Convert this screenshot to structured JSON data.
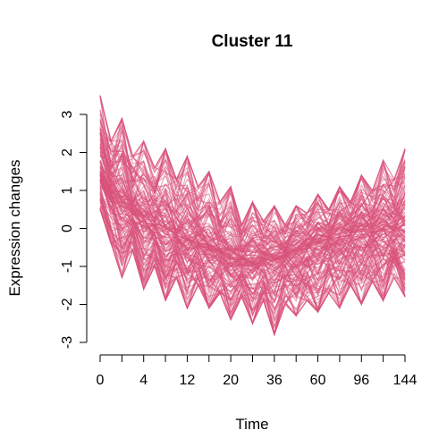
{
  "chart_data": {
    "type": "line",
    "title": "Cluster 11",
    "xlabel": "Time",
    "ylabel": "Expression changes",
    "x_ticks": [
      "0",
      "4",
      "12",
      "20",
      "36",
      "60",
      "96",
      "144"
    ],
    "y_ticks": [
      -3,
      -2,
      -1,
      0,
      1,
      2,
      3
    ],
    "ylim": [
      -3,
      3.3
    ],
    "time_points": 29,
    "color": "#d9527a",
    "band": {
      "upper": [
        3.5,
        2.3,
        2.9,
        1.9,
        2.3,
        1.6,
        2.1,
        1.3,
        1.9,
        1.1,
        1.5,
        0.7,
        1.1,
        0.1,
        0.7,
        0.2,
        0.6,
        0.1,
        0.6,
        0.4,
        0.9,
        0.5,
        1.1,
        0.7,
        1.4,
        1.0,
        1.8,
        1.3,
        2.1
      ],
      "lower": [
        0.5,
        -0.4,
        -1.3,
        -0.6,
        -1.6,
        -1.0,
        -1.9,
        -1.3,
        -2.1,
        -1.5,
        -2.1,
        -1.7,
        -2.4,
        -1.8,
        -2.5,
        -1.9,
        -2.8,
        -2.0,
        -2.3,
        -1.9,
        -2.2,
        -1.7,
        -2.1,
        -1.5,
        -2.0,
        -1.4,
        -1.9,
        -1.3,
        -1.8
      ],
      "center": [
        1.5,
        1.0,
        0.7,
        0.5,
        0.3,
        0.1,
        0.0,
        -0.2,
        -0.3,
        -0.4,
        -0.5,
        -0.6,
        -0.8,
        -0.8,
        -0.9,
        -0.8,
        -0.8,
        -0.7,
        -0.6,
        -0.5,
        -0.4,
        -0.3,
        -0.2,
        -0.2,
        -0.1,
        -0.1,
        0.0,
        0.0,
        0.1
      ]
    }
  }
}
